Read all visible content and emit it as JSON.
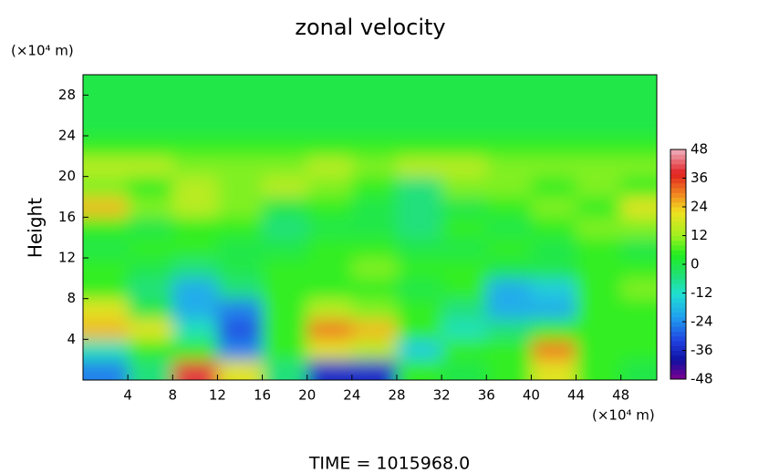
{
  "chart_data": {
    "type": "heatmap",
    "title": "zonal velocity",
    "y_label": "Height",
    "y_unit": "(×10⁴ m)",
    "x_unit": "(×10⁴ m)",
    "footer": "TIME = 1015968.0",
    "xlim": [
      0,
      51.2
    ],
    "ylim": [
      0,
      30
    ],
    "xticks": [
      4,
      8,
      12,
      16,
      20,
      24,
      28,
      32,
      36,
      40,
      44,
      48
    ],
    "yticks": [
      4,
      8,
      12,
      16,
      20,
      24,
      28
    ],
    "x": [
      2,
      6,
      10,
      14,
      18,
      22,
      26,
      30,
      34,
      38,
      42,
      46,
      50
    ],
    "y": [
      1,
      3,
      5,
      7,
      9,
      11,
      13,
      15,
      17,
      19,
      21,
      23,
      25,
      27,
      29
    ],
    "z": [
      [
        -25,
        -5,
        40,
        20,
        -5,
        -35,
        -35,
        5,
        0,
        5,
        20,
        5,
        0
      ],
      [
        -10,
        5,
        5,
        -25,
        5,
        20,
        15,
        -15,
        5,
        5,
        30,
        5,
        5
      ],
      [
        25,
        20,
        -10,
        -30,
        5,
        30,
        25,
        5,
        -10,
        -5,
        5,
        5,
        5
      ],
      [
        20,
        0,
        -20,
        -25,
        5,
        15,
        10,
        5,
        -5,
        -20,
        -20,
        5,
        5
      ],
      [
        5,
        -5,
        -20,
        -5,
        5,
        5,
        5,
        0,
        5,
        -20,
        -15,
        5,
        10
      ],
      [
        5,
        0,
        -5,
        0,
        5,
        5,
        10,
        5,
        5,
        0,
        0,
        5,
        5
      ],
      [
        0,
        5,
        5,
        0,
        0,
        5,
        5,
        0,
        0,
        5,
        0,
        5,
        0
      ],
      [
        5,
        0,
        5,
        5,
        -5,
        0,
        0,
        -5,
        5,
        0,
        5,
        10,
        10
      ],
      [
        25,
        10,
        15,
        10,
        0,
        5,
        0,
        -5,
        0,
        5,
        10,
        5,
        20
      ],
      [
        10,
        5,
        15,
        10,
        15,
        10,
        5,
        -5,
        10,
        10,
        5,
        10,
        5
      ],
      [
        15,
        15,
        10,
        10,
        10,
        15,
        10,
        15,
        15,
        10,
        10,
        10,
        10
      ],
      [
        5,
        5,
        5,
        5,
        5,
        5,
        5,
        5,
        5,
        5,
        5,
        5,
        5
      ],
      [
        0,
        0,
        0,
        0,
        0,
        0,
        0,
        0,
        0,
        0,
        0,
        0,
        0
      ],
      [
        0,
        0,
        0,
        0,
        0,
        0,
        0,
        0,
        0,
        0,
        0,
        0,
        0
      ],
      [
        0,
        0,
        0,
        0,
        0,
        0,
        0,
        0,
        0,
        0,
        0,
        0,
        0
      ]
    ],
    "clim": [
      -48,
      48
    ],
    "cticks": [
      48,
      36,
      24,
      12,
      0,
      -12,
      -24,
      -36,
      -48
    ],
    "colormap": [
      [
        -48,
        "#800090"
      ],
      [
        -40,
        "#1010a0"
      ],
      [
        -32,
        "#2040e0"
      ],
      [
        -22,
        "#20a0f0"
      ],
      [
        -12,
        "#20e0d0"
      ],
      [
        -4,
        "#20e070"
      ],
      [
        4,
        "#20ee20"
      ],
      [
        12,
        "#a0f020"
      ],
      [
        22,
        "#f0e020"
      ],
      [
        30,
        "#f08020"
      ],
      [
        38,
        "#e02020"
      ],
      [
        48,
        "#f0b0c0"
      ]
    ]
  }
}
